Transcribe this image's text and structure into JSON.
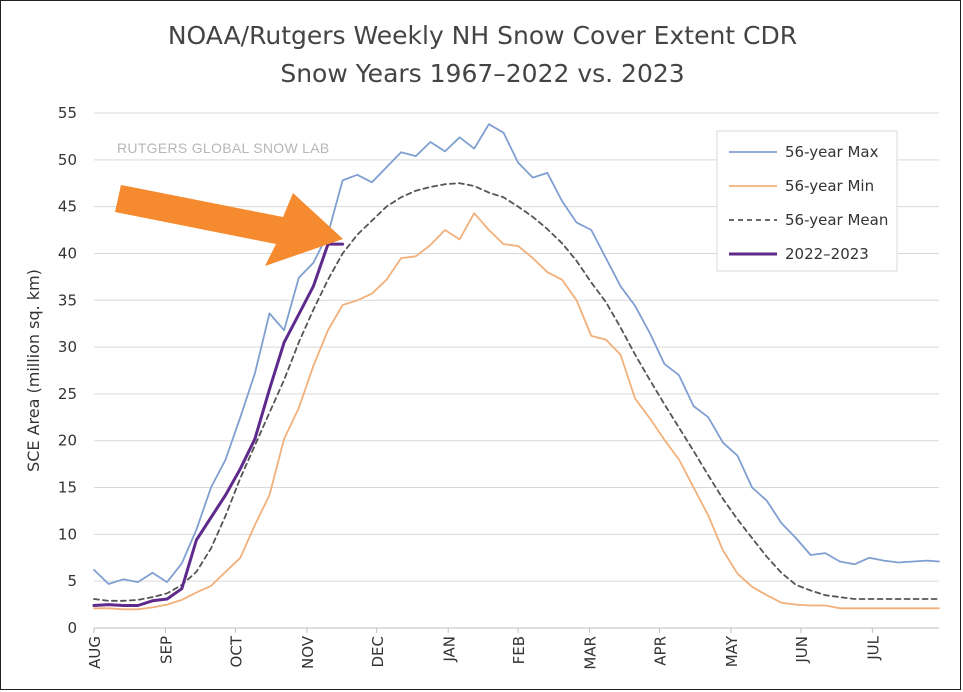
{
  "chart_data": {
    "type": "line",
    "title": "NOAA/Rutgers Weekly NH Snow Cover Extent CDR",
    "subtitle": "Snow Years 1967–2022 vs. 2023",
    "ylabel": "SCE Area (million sq. km)",
    "xlabel": "",
    "watermark": "RUTGERS GLOBAL SNOW LAB",
    "ylim": [
      0,
      55
    ],
    "yticks": [
      0,
      5,
      10,
      15,
      20,
      25,
      30,
      35,
      40,
      45,
      50,
      55
    ],
    "xlim": [
      0,
      52
    ],
    "month_ticks": [
      {
        "label": "AUG",
        "week": 0
      },
      {
        "label": "SEP",
        "week": 4.4
      },
      {
        "label": "OCT",
        "week": 8.7
      },
      {
        "label": "NOV",
        "week": 13.1
      },
      {
        "label": "DEC",
        "week": 17.4
      },
      {
        "label": "JAN",
        "week": 21.8
      },
      {
        "label": "FEB",
        "week": 26.1
      },
      {
        "label": "MAR",
        "week": 30.5
      },
      {
        "label": "APR",
        "week": 34.8
      },
      {
        "label": "MAY",
        "week": 39.2
      },
      {
        "label": "JUN",
        "week": 43.5
      },
      {
        "label": "JUL",
        "week": 47.9
      }
    ],
    "grid": true,
    "legend_position": "top-right",
    "series": [
      {
        "name": "56-year Max",
        "color": "#7f9fd1",
        "dash": "",
        "width": 1.8,
        "x": [
          0,
          0.9,
          1.8,
          2.7,
          3.6,
          4.5,
          5.4,
          6.3,
          7.2,
          8.1,
          9.0,
          9.9,
          10.8,
          11.7,
          12.6,
          13.5,
          14.4,
          15.3,
          16.2,
          17.1,
          18.0,
          18.9,
          19.8,
          20.7,
          21.6,
          22.5,
          23.4,
          24.3,
          25.2,
          26.1,
          27.0,
          27.9,
          28.8,
          29.7,
          30.6,
          31.5,
          32.4,
          33.3,
          34.2,
          35.1,
          36.0,
          36.9,
          37.8,
          38.7,
          39.6,
          40.5,
          41.4,
          42.3,
          43.2,
          44.1,
          45.0,
          45.9,
          46.8,
          47.7,
          48.6,
          49.5,
          50.4,
          51.3,
          52.0
        ],
        "y": [
          6.2,
          4.7,
          5.2,
          4.9,
          5.9,
          4.9,
          6.9,
          10.5,
          15.0,
          18.0,
          22.5,
          27.2,
          33.6,
          31.8,
          37.4,
          39.0,
          42.1,
          47.8,
          48.4,
          47.6,
          49.2,
          50.8,
          50.4,
          51.9,
          50.9,
          52.4,
          51.2,
          53.8,
          52.9,
          49.7,
          48.1,
          48.6,
          45.6,
          43.3,
          42.5,
          39.5,
          36.5,
          34.4,
          31.5,
          28.2,
          27.0,
          23.7,
          22.5,
          19.8,
          18.4,
          15.0,
          13.6,
          11.2,
          9.6,
          7.8,
          8.0,
          7.1,
          6.8,
          7.5,
          7.2,
          7.0,
          7.1,
          7.2,
          7.1
        ]
      },
      {
        "name": "56-year Min",
        "color": "#f2b07a",
        "dash": "",
        "width": 1.8,
        "x": [
          0,
          0.9,
          1.8,
          2.7,
          3.6,
          4.5,
          5.4,
          6.3,
          7.2,
          8.1,
          9.0,
          9.9,
          10.8,
          11.7,
          12.6,
          13.5,
          14.4,
          15.3,
          16.2,
          17.1,
          18.0,
          18.9,
          19.8,
          20.7,
          21.6,
          22.5,
          23.4,
          24.3,
          25.2,
          26.1,
          27.0,
          27.9,
          28.8,
          29.7,
          30.6,
          31.5,
          32.4,
          33.3,
          34.2,
          35.1,
          36.0,
          36.9,
          37.8,
          38.7,
          39.6,
          40.5,
          41.4,
          42.3,
          43.2,
          44.1,
          45.0,
          45.9,
          46.8,
          47.7,
          48.6,
          49.5,
          50.4,
          51.3,
          52.0
        ],
        "y": [
          2.1,
          2.1,
          2.0,
          2.0,
          2.2,
          2.5,
          3.0,
          3.8,
          4.5,
          6.0,
          7.5,
          11.0,
          14.2,
          20.2,
          23.5,
          28.0,
          31.8,
          34.5,
          35.0,
          35.7,
          37.2,
          39.5,
          39.7,
          40.9,
          42.5,
          41.5,
          44.3,
          42.5,
          41.0,
          40.8,
          39.5,
          38.0,
          37.2,
          35.0,
          31.2,
          30.8,
          29.2,
          24.5,
          22.4,
          20.1,
          18.0,
          15.0,
          12.0,
          8.3,
          5.8,
          4.4,
          3.5,
          2.7,
          2.5,
          2.4,
          2.4,
          2.1,
          2.1,
          2.1,
          2.1,
          2.1,
          2.1,
          2.1,
          2.1
        ]
      },
      {
        "name": "56-year Mean",
        "color": "#555555",
        "dash": "5,4",
        "width": 1.8,
        "x": [
          0,
          0.9,
          1.8,
          2.7,
          3.6,
          4.5,
          5.4,
          6.3,
          7.2,
          8.1,
          9.0,
          9.9,
          10.8,
          11.7,
          12.6,
          13.5,
          14.4,
          15.3,
          16.2,
          17.1,
          18.0,
          18.9,
          19.8,
          20.7,
          21.6,
          22.5,
          23.4,
          24.3,
          25.2,
          26.1,
          27.0,
          27.9,
          28.8,
          29.7,
          30.6,
          31.5,
          32.4,
          33.3,
          34.2,
          35.1,
          36.0,
          36.9,
          37.8,
          38.7,
          39.6,
          40.5,
          41.4,
          42.3,
          43.2,
          44.1,
          45.0,
          45.9,
          46.8,
          47.7,
          48.6,
          49.5,
          50.4,
          51.3,
          52.0
        ],
        "y": [
          3.1,
          2.9,
          2.9,
          3.0,
          3.3,
          3.7,
          4.6,
          6.0,
          8.5,
          12.0,
          16.0,
          19.5,
          23.0,
          26.5,
          30.5,
          34.0,
          37.2,
          40.0,
          42.0,
          43.5,
          45.0,
          46.0,
          46.7,
          47.1,
          47.4,
          47.5,
          47.2,
          46.5,
          46.0,
          45.0,
          43.9,
          42.6,
          41.1,
          39.2,
          36.9,
          34.8,
          32.1,
          29.2,
          26.5,
          23.9,
          21.4,
          18.9,
          16.3,
          13.8,
          11.6,
          9.6,
          7.6,
          5.9,
          4.6,
          4.0,
          3.5,
          3.3,
          3.1,
          3.1,
          3.1,
          3.1,
          3.1,
          3.1,
          3.1
        ]
      },
      {
        "name": "2022–2023",
        "color": "#5e2b8c",
        "dash": "",
        "width": 3,
        "x": [
          0,
          0.9,
          1.8,
          2.7,
          3.6,
          4.5,
          5.4,
          6.3,
          7.2,
          8.1,
          9.0,
          9.9,
          10.8,
          11.7,
          12.6,
          13.5,
          14.4,
          15.3
        ],
        "y": [
          2.4,
          2.5,
          2.4,
          2.4,
          2.9,
          3.1,
          4.2,
          9.4,
          11.8,
          14.2,
          17.0,
          20.2,
          25.5,
          30.5,
          33.5,
          36.5,
          41.0,
          41.0
        ]
      }
    ],
    "annotations": [
      {
        "type": "arrow",
        "color": "#f58a2e",
        "description": "orange arrow pointing at end of 2022–2023 line"
      }
    ]
  }
}
